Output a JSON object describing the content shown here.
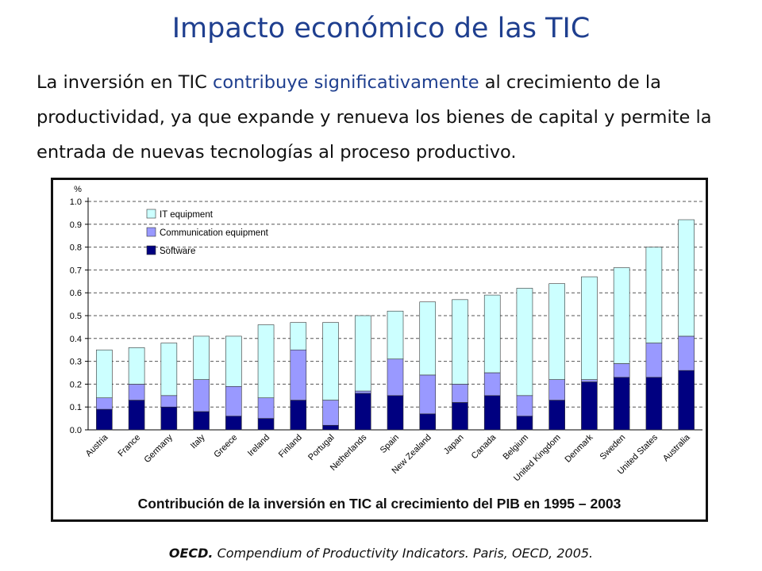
{
  "slide": {
    "title": "Impacto económico de las TIC",
    "paragraph_before": "La inversión en TIC ",
    "paragraph_highlight": "contribuye significativamente",
    "paragraph_after": " al crecimiento de la productividad, ya que expande y renueva los bienes de capital y permite la entrada de nuevas tecnologías al proceso productivo.",
    "caption": "Contribución de la inversión en TIC al crecimiento del PIB en 1995 – 2003",
    "source_org": "OECD.",
    "source_rest": " Compendium of Productivity Indicators. Paris, OECD, 2005."
  },
  "chart_data": {
    "type": "bar",
    "stacked": true,
    "ylabel": "%",
    "ylim": [
      0,
      1.0
    ],
    "yticks": [
      "0.0",
      "0.1",
      "0.2",
      "0.3",
      "0.4",
      "0.5",
      "0.6",
      "0.7",
      "0.8",
      "0.9",
      "1.0"
    ],
    "grid": "dashed horizontal",
    "legend_position": "top-left",
    "categories": [
      "Austria",
      "France",
      "Germany",
      "Italy",
      "Greece",
      "Ireland",
      "Finland",
      "Portugal",
      "Netherlands",
      "Spain",
      "New Zealand",
      "Japan",
      "Canada",
      "Belgium",
      "United Kingdom",
      "Denmark",
      "Sweden",
      "United States",
      "Australia"
    ],
    "series": [
      {
        "name": "Software",
        "color": "#000080",
        "values": [
          0.09,
          0.13,
          0.1,
          0.08,
          0.06,
          0.05,
          0.13,
          0.02,
          0.16,
          0.15,
          0.07,
          0.12,
          0.15,
          0.06,
          0.13,
          0.21,
          0.23,
          0.23,
          0.26
        ]
      },
      {
        "name": "Communication equipment",
        "color": "#9999ff",
        "values": [
          0.05,
          0.07,
          0.05,
          0.14,
          0.13,
          0.09,
          0.22,
          0.11,
          0.01,
          0.16,
          0.17,
          0.08,
          0.1,
          0.09,
          0.09,
          0.01,
          0.06,
          0.15,
          0.15
        ]
      },
      {
        "name": "IT equipment",
        "color": "#ccffff",
        "values": [
          0.21,
          0.16,
          0.23,
          0.19,
          0.22,
          0.32,
          0.12,
          0.34,
          0.33,
          0.21,
          0.32,
          0.37,
          0.34,
          0.47,
          0.42,
          0.45,
          0.42,
          0.42,
          0.51
        ]
      }
    ]
  }
}
